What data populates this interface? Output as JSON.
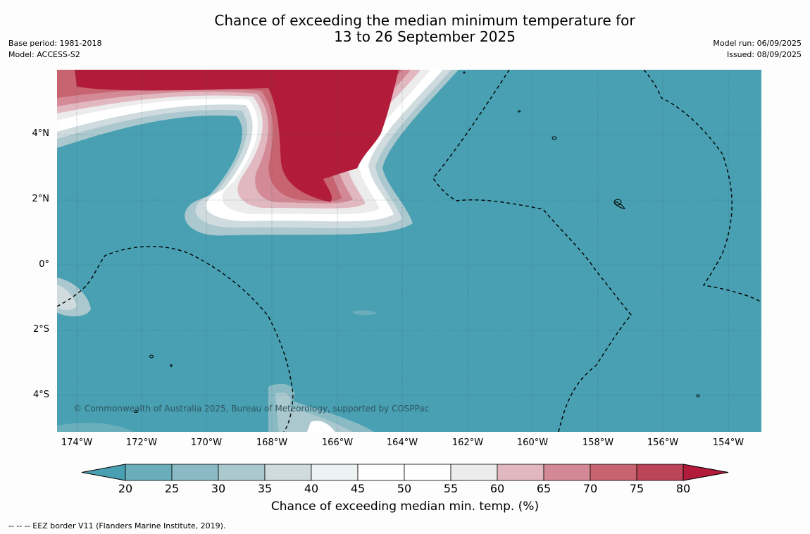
{
  "title_line1": "Chance of exceeding the median minimum temperature for",
  "title_line2": "13 to 26 September 2025",
  "base_period": "Base period: 1981-2018",
  "model": "Model: ACCESS-S2",
  "model_run": "Model run: 06/09/2025",
  "issued": "Issued: 08/09/2025",
  "copyright": "© Commonwealth of Australia 2025, Bureau of Meteorology, supported by COSPPac",
  "lat_labels": [
    "4°N",
    "2°N",
    "0°",
    "2°S",
    "4°S"
  ],
  "lon_labels": [
    "174°W",
    "172°W",
    "170°W",
    "168°W",
    "166°W",
    "164°W",
    "162°W",
    "160°W",
    "158°W",
    "156°W",
    "154°W"
  ],
  "colorbar": {
    "ticks": [
      "20",
      "25",
      "30",
      "35",
      "40",
      "45",
      "50",
      "55",
      "60",
      "65",
      "70",
      "75",
      "80"
    ],
    "colors": [
      "#48a0b2",
      "#6aaebc",
      "#8abbc5",
      "#abc8ce",
      "#cfdbde",
      "#edf2f3",
      "#ffffff",
      "#ffffff",
      "#ececec",
      "#e1b8bf",
      "#d48a96",
      "#c86470",
      "#bb4458",
      "#b21c3a"
    ],
    "label": "Chance of exceeding median min. temp. (%)"
  },
  "footnote": "--  --  -- EEZ border V11 (Flanders Marine Institute, 2019)."
}
